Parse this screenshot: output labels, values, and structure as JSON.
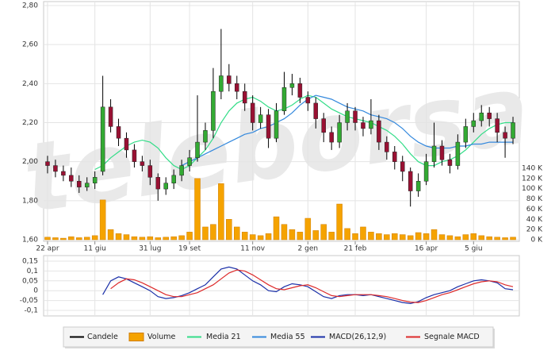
{
  "chart_data": [
    {
      "type": "candlestick",
      "watermark": "teleborsa",
      "categories": [
        "22 apr",
        null,
        null,
        null,
        null,
        null,
        "11 giu",
        null,
        null,
        null,
        null,
        null,
        null,
        "31 lug",
        null,
        null,
        null,
        null,
        "19 set",
        null,
        null,
        null,
        null,
        null,
        null,
        null,
        "11 nov",
        null,
        null,
        null,
        null,
        null,
        null,
        "2 gen",
        null,
        null,
        null,
        null,
        null,
        "21 feb",
        null,
        null,
        null,
        null,
        null,
        null,
        null,
        null,
        "16 apr",
        null,
        null,
        null,
        null,
        null,
        "5 giu",
        null,
        null,
        null,
        null,
        null
      ],
      "candles": {
        "name": "Candele",
        "color": "#000000",
        "up_color": "#33aa33",
        "down_color": "#991133",
        "open": [
          2.0,
          1.98,
          1.95,
          1.93,
          1.9,
          1.87,
          1.89,
          1.95,
          2.28,
          2.18,
          2.12,
          2.06,
          2.0,
          1.98,
          1.92,
          1.86,
          1.89,
          1.93,
          1.98,
          2.02,
          2.1,
          2.16,
          2.36,
          2.44,
          2.4,
          2.36,
          2.3,
          2.2,
          2.24,
          2.12,
          2.26,
          2.38,
          2.4,
          2.33,
          2.3,
          2.22,
          2.15,
          2.1,
          2.2,
          2.26,
          2.2,
          2.17,
          2.21,
          2.1,
          2.05,
          2.0,
          1.95,
          1.85,
          1.9,
          2.0,
          2.08,
          2.01,
          1.98,
          2.1,
          2.18,
          2.21,
          2.25,
          2.22,
          2.15,
          2.12
        ],
        "high": [
          2.03,
          2.01,
          1.98,
          1.97,
          1.93,
          1.92,
          1.95,
          2.44,
          2.32,
          2.22,
          2.15,
          2.09,
          2.03,
          2.01,
          1.94,
          1.92,
          1.96,
          2.01,
          2.06,
          2.34,
          2.2,
          2.48,
          2.68,
          2.5,
          2.44,
          2.4,
          2.34,
          2.28,
          2.27,
          2.3,
          2.46,
          2.45,
          2.43,
          2.36,
          2.33,
          2.25,
          2.18,
          2.24,
          2.3,
          2.28,
          2.23,
          2.32,
          2.24,
          2.13,
          2.08,
          2.03,
          1.97,
          1.94,
          2.04,
          2.2,
          2.11,
          2.04,
          2.14,
          2.22,
          2.25,
          2.29,
          2.28,
          2.25,
          2.18,
          2.23
        ],
        "low": [
          1.94,
          1.92,
          1.9,
          1.87,
          1.84,
          1.85,
          1.86,
          1.93,
          2.15,
          2.08,
          2.02,
          1.97,
          1.95,
          1.88,
          1.8,
          1.83,
          1.86,
          1.9,
          1.95,
          2.0,
          2.06,
          2.12,
          2.32,
          2.36,
          2.32,
          2.26,
          2.16,
          2.17,
          2.07,
          2.1,
          2.24,
          2.34,
          2.3,
          2.26,
          2.17,
          2.1,
          2.06,
          2.07,
          2.16,
          2.16,
          2.13,
          2.14,
          2.06,
          2.01,
          1.96,
          1.9,
          1.77,
          1.82,
          1.88,
          1.97,
          1.98,
          1.94,
          1.96,
          2.07,
          2.15,
          2.18,
          2.18,
          2.1,
          2.02,
          2.09
        ],
        "close": [
          1.98,
          1.95,
          1.93,
          1.9,
          1.87,
          1.89,
          1.92,
          2.28,
          2.18,
          2.12,
          2.06,
          2.0,
          1.98,
          1.92,
          1.86,
          1.89,
          1.93,
          1.98,
          2.02,
          2.1,
          2.16,
          2.36,
          2.44,
          2.4,
          2.36,
          2.3,
          2.2,
          2.24,
          2.12,
          2.26,
          2.38,
          2.4,
          2.33,
          2.3,
          2.22,
          2.15,
          2.1,
          2.2,
          2.26,
          2.2,
          2.17,
          2.21,
          2.1,
          2.05,
          2.0,
          1.95,
          1.85,
          1.9,
          2.0,
          2.08,
          2.01,
          1.98,
          2.1,
          2.18,
          2.21,
          2.25,
          2.22,
          2.15,
          2.12,
          2.2
        ]
      },
      "volume": {
        "name": "Volume",
        "color": "#f5a300",
        "axis": "y2",
        "values": [
          5,
          4,
          3,
          6,
          4,
          5,
          8,
          78,
          20,
          12,
          10,
          6,
          5,
          6,
          4,
          5,
          6,
          8,
          15,
          120,
          25,
          30,
          110,
          40,
          25,
          15,
          10,
          8,
          12,
          45,
          30,
          20,
          15,
          42,
          18,
          30,
          15,
          70,
          22,
          12,
          25,
          15,
          12,
          10,
          12,
          10,
          8,
          14,
          12,
          20,
          10,
          8,
          6,
          10,
          12,
          8,
          6,
          5,
          4,
          5
        ]
      },
      "series": [
        {
          "name": "Media 21",
          "color": "#33dd88",
          "values": [
            null,
            null,
            null,
            null,
            null,
            null,
            1.96,
            1.98,
            2.02,
            2.05,
            2.08,
            2.1,
            2.11,
            2.1,
            2.07,
            2.02,
            1.98,
            1.96,
            1.98,
            2.02,
            2.06,
            2.12,
            2.2,
            2.26,
            2.3,
            2.32,
            2.33,
            2.31,
            2.28,
            2.26,
            2.27,
            2.29,
            2.32,
            2.34,
            2.33,
            2.3,
            2.27,
            2.25,
            2.23,
            2.22,
            2.21,
            2.2,
            2.18,
            2.16,
            2.13,
            2.09,
            2.04,
            2.0,
            1.98,
            1.98,
            2.0,
            2.01,
            2.03,
            2.06,
            2.1,
            2.14,
            2.17,
            2.19,
            2.2,
            2.2
          ]
        },
        {
          "name": "Media 55",
          "color": "#3388dd",
          "values": [
            null,
            null,
            null,
            null,
            null,
            null,
            null,
            null,
            null,
            null,
            null,
            null,
            null,
            null,
            null,
            null,
            null,
            1.98,
            2.0,
            2.02,
            2.04,
            2.06,
            2.08,
            2.1,
            2.12,
            2.14,
            2.15,
            2.17,
            2.18,
            2.2,
            2.22,
            2.25,
            2.29,
            2.32,
            2.34,
            2.33,
            2.32,
            2.3,
            2.28,
            2.27,
            2.26,
            2.24,
            2.23,
            2.22,
            2.2,
            2.17,
            2.13,
            2.1,
            2.08,
            2.07,
            2.07,
            2.07,
            2.08,
            2.08,
            2.09,
            2.09,
            2.1,
            2.1,
            2.1,
            2.1
          ]
        }
      ],
      "ylim": [
        1.6,
        2.8
      ],
      "yticks": [
        {
          "value": 1.6,
          "label": "1,60"
        },
        {
          "value": 1.8,
          "label": "1,80"
        },
        {
          "value": 2.0,
          "label": "2,00"
        },
        {
          "value": 2.2,
          "label": "2,20"
        },
        {
          "value": 2.4,
          "label": "2,40"
        },
        {
          "value": 2.6,
          "label": "2,60"
        },
        {
          "value": 2.8,
          "label": "2,80"
        }
      ],
      "y2lim": [
        0,
        459
      ],
      "y2ticks": [
        {
          "value": 0,
          "label": "0 K"
        },
        {
          "value": 20,
          "label": "20 K"
        },
        {
          "value": 40,
          "label": "40 K"
        },
        {
          "value": 60,
          "label": "60 K"
        },
        {
          "value": 80,
          "label": "80 K"
        },
        {
          "value": 100,
          "label": "100 K"
        },
        {
          "value": 120,
          "label": "120 K"
        },
        {
          "value": 140,
          "label": "140 K"
        }
      ],
      "grid": true
    },
    {
      "type": "line",
      "series": [
        {
          "name": "MACD(26,12,9)",
          "color": "#1a2fa8",
          "values": [
            null,
            null,
            null,
            null,
            null,
            null,
            null,
            -0.02,
            0.05,
            0.07,
            0.06,
            0.04,
            0.02,
            0.0,
            -0.03,
            -0.04,
            -0.035,
            -0.025,
            -0.01,
            0.01,
            0.03,
            0.07,
            0.11,
            0.12,
            0.11,
            0.08,
            0.05,
            0.03,
            0.0,
            -0.005,
            0.02,
            0.035,
            0.03,
            0.02,
            -0.005,
            -0.03,
            -0.04,
            -0.025,
            -0.02,
            -0.02,
            -0.025,
            -0.02,
            -0.03,
            -0.04,
            -0.05,
            -0.06,
            -0.065,
            -0.055,
            -0.035,
            -0.02,
            -0.01,
            0.0,
            0.02,
            0.035,
            0.05,
            0.055,
            0.05,
            0.04,
            0.01,
            0.005
          ]
        },
        {
          "name": "Segnale MACD",
          "color": "#dd2a2a",
          "values": [
            null,
            null,
            null,
            null,
            null,
            null,
            null,
            null,
            0.01,
            0.04,
            0.06,
            0.055,
            0.04,
            0.02,
            0.0,
            -0.02,
            -0.03,
            -0.03,
            -0.02,
            -0.01,
            0.01,
            0.03,
            0.06,
            0.09,
            0.105,
            0.1,
            0.08,
            0.055,
            0.03,
            0.01,
            0.005,
            0.015,
            0.025,
            0.03,
            0.015,
            -0.005,
            -0.025,
            -0.03,
            -0.025,
            -0.02,
            -0.02,
            -0.02,
            -0.025,
            -0.03,
            -0.04,
            -0.05,
            -0.058,
            -0.06,
            -0.05,
            -0.035,
            -0.02,
            -0.01,
            0.005,
            0.02,
            0.035,
            0.045,
            0.05,
            0.045,
            0.03,
            0.02
          ]
        }
      ],
      "ylim": [
        -0.128,
        0.178
      ],
      "yticks": [
        {
          "value": -0.1,
          "label": "-0,1"
        },
        {
          "value": -0.05,
          "label": "-0,05"
        },
        {
          "value": 0,
          "label": "0"
        },
        {
          "value": 0.05,
          "label": "0,05"
        },
        {
          "value": 0.1,
          "label": "0,1"
        },
        {
          "value": 0.15,
          "label": "0,15"
        }
      ],
      "grid": true
    }
  ]
}
